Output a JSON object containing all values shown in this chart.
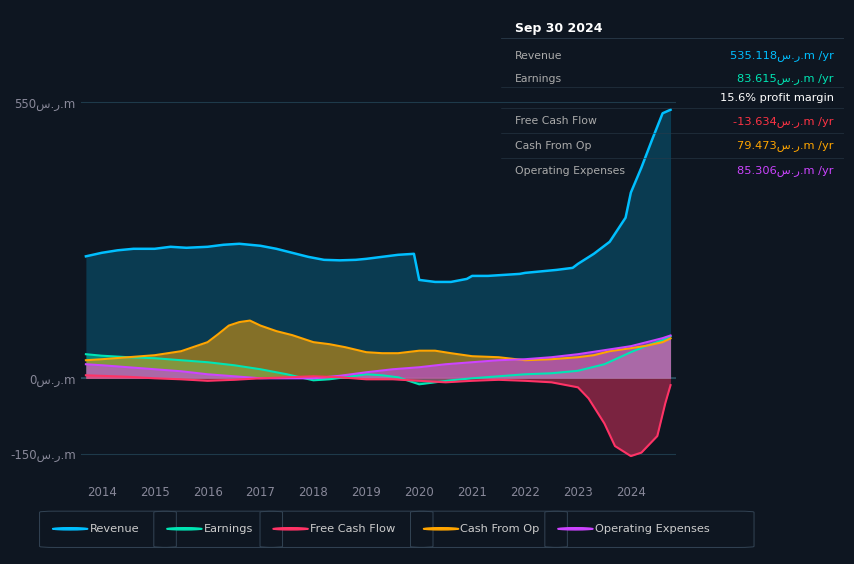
{
  "bg_color": "#0e1621",
  "chart_bg": "#111d2e",
  "panel_bg": "#0a0e15",
  "title_date": "Sep 30 2024",
  "table_rows": [
    {
      "label": "Revenue",
      "value": "535.118س.ر.m /yr",
      "color": "#00bfff",
      "sep_below": true
    },
    {
      "label": "Earnings",
      "value": "83.615س.ر.m /yr",
      "color": "#00e5b4",
      "sep_below": false
    },
    {
      "label": "",
      "value": "15.6% profit margin",
      "color": "#ffffff",
      "sep_below": true
    },
    {
      "label": "Free Cash Flow",
      "value": "-13.634س.ر.m /yr",
      "color": "#ff3344",
      "sep_below": true
    },
    {
      "label": "Cash From Op",
      "value": "79.473س.ر.m /yr",
      "color": "#ffa500",
      "sep_below": true
    },
    {
      "label": "Operating Expenses",
      "value": "85.306س.ر.m /yr",
      "color": "#cc44ff",
      "sep_below": false
    }
  ],
  "xlim": [
    2013.6,
    2024.85
  ],
  "ylim": [
    -205,
    615
  ],
  "ytick_positions": [
    -150,
    0,
    550
  ],
  "ytick_labels": [
    "-150س.ر.m",
    "0س.ر.m",
    "550س.ر.m"
  ],
  "xtick_years": [
    2014,
    2015,
    2016,
    2017,
    2018,
    2019,
    2020,
    2021,
    2022,
    2023,
    2024
  ],
  "revenue_x": [
    2013.7,
    2014.0,
    2014.3,
    2014.6,
    2015.0,
    2015.3,
    2015.6,
    2016.0,
    2016.3,
    2016.6,
    2017.0,
    2017.3,
    2017.6,
    2017.9,
    2018.0,
    2018.2,
    2018.5,
    2018.8,
    2019.0,
    2019.3,
    2019.6,
    2019.9,
    2020.0,
    2020.3,
    2020.6,
    2020.9,
    2021.0,
    2021.3,
    2021.6,
    2021.9,
    2022.0,
    2022.3,
    2022.6,
    2022.9,
    2023.0,
    2023.3,
    2023.6,
    2023.9,
    2024.0,
    2024.2,
    2024.4,
    2024.6,
    2024.75
  ],
  "revenue_y": [
    243,
    250,
    255,
    258,
    258,
    262,
    260,
    262,
    266,
    268,
    264,
    258,
    250,
    242,
    240,
    236,
    235,
    236,
    238,
    242,
    246,
    248,
    196,
    192,
    192,
    198,
    204,
    204,
    206,
    208,
    210,
    213,
    216,
    220,
    228,
    248,
    272,
    320,
    370,
    420,
    475,
    528,
    535
  ],
  "earnings_x": [
    2013.7,
    2014.0,
    2014.5,
    2015.0,
    2015.5,
    2016.0,
    2016.5,
    2017.0,
    2017.5,
    2018.0,
    2018.3,
    2018.6,
    2019.0,
    2019.3,
    2019.6,
    2020.0,
    2020.3,
    2020.6,
    2021.0,
    2021.5,
    2022.0,
    2022.5,
    2023.0,
    2023.5,
    2024.0,
    2024.3,
    2024.6,
    2024.75
  ],
  "earnings_y": [
    48,
    45,
    42,
    40,
    36,
    32,
    26,
    18,
    8,
    -4,
    -2,
    2,
    8,
    6,
    2,
    -12,
    -8,
    -4,
    0,
    4,
    8,
    10,
    15,
    28,
    52,
    65,
    76,
    83.6
  ],
  "cashop_x": [
    2013.7,
    2014.0,
    2014.5,
    2015.0,
    2015.5,
    2016.0,
    2016.2,
    2016.4,
    2016.6,
    2016.8,
    2017.0,
    2017.3,
    2017.6,
    2018.0,
    2018.3,
    2018.6,
    2019.0,
    2019.3,
    2019.6,
    2020.0,
    2020.3,
    2020.6,
    2021.0,
    2021.5,
    2022.0,
    2022.5,
    2023.0,
    2023.3,
    2023.6,
    2024.0,
    2024.3,
    2024.6,
    2024.75
  ],
  "cashop_y": [
    36,
    38,
    42,
    46,
    54,
    72,
    88,
    105,
    112,
    115,
    105,
    94,
    86,
    72,
    68,
    62,
    52,
    50,
    50,
    55,
    55,
    50,
    44,
    42,
    36,
    38,
    42,
    46,
    54,
    60,
    65,
    72,
    79.5
  ],
  "opex_x": [
    2013.7,
    2014.0,
    2014.5,
    2015.0,
    2015.5,
    2016.0,
    2016.5,
    2017.0,
    2018.0,
    2018.5,
    2019.0,
    2019.5,
    2020.0,
    2020.5,
    2021.0,
    2021.5,
    2022.0,
    2022.5,
    2023.0,
    2023.5,
    2024.0,
    2024.3,
    2024.6,
    2024.75
  ],
  "opex_y": [
    28,
    26,
    22,
    18,
    14,
    8,
    4,
    0,
    0,
    5,
    12,
    18,
    22,
    28,
    32,
    36,
    38,
    42,
    48,
    56,
    64,
    72,
    80,
    85.3
  ],
  "fcf_x": [
    2013.7,
    2014.5,
    2015.0,
    2015.5,
    2016.0,
    2016.5,
    2017.0,
    2017.5,
    2018.0,
    2018.5,
    2019.0,
    2019.5,
    2020.0,
    2020.5,
    2021.0,
    2021.5,
    2022.0,
    2022.5,
    2023.0,
    2023.2,
    2023.5,
    2023.7,
    2024.0,
    2024.2,
    2024.5,
    2024.65,
    2024.75
  ],
  "fcf_y": [
    6,
    3,
    0,
    -2,
    -5,
    -3,
    0,
    2,
    4,
    2,
    -2,
    -2,
    -5,
    -8,
    -5,
    -3,
    -5,
    -8,
    -18,
    -40,
    -90,
    -135,
    -155,
    -148,
    -115,
    -50,
    -13.6
  ],
  "colors": {
    "revenue": "#00bfff",
    "earnings": "#00e5b4",
    "fcf": "#ff3366",
    "cashop": "#ffa500",
    "opex": "#cc44ff"
  },
  "legend_items": [
    {
      "color": "#00bfff",
      "label": "Revenue"
    },
    {
      "color": "#00e5b4",
      "label": "Earnings"
    },
    {
      "color": "#ff3366",
      "label": "Free Cash Flow"
    },
    {
      "color": "#ffa500",
      "label": "Cash From Op"
    },
    {
      "color": "#cc44ff",
      "label": "Operating Expenses"
    }
  ]
}
